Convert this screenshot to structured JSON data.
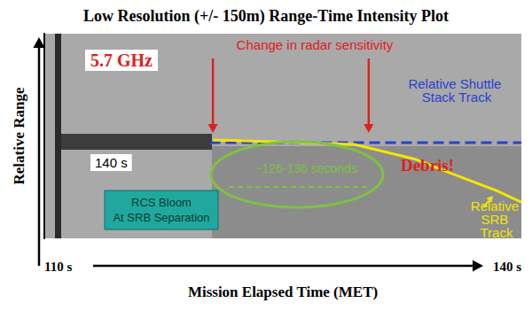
{
  "chart_data": {
    "type": "line",
    "title": "Low Resolution (+/- 150m) Range-Time Intensity Plot",
    "x_label": "Mission Elapsed Time (MET)",
    "y_label": "Relative Range",
    "xlim": [
      110,
      140
    ],
    "xticks": [
      {
        "value": 110,
        "label": "110 s"
      },
      {
        "value": 140,
        "label": "140 s"
      }
    ],
    "ylim": [
      0,
      100
    ],
    "tick_labels": "x",
    "grid": false,
    "series": [
      {
        "name": "Relative Shuttle Stack Track",
        "color": "#2b3fd0",
        "line_style": "dashed",
        "x": [
          120.4,
          140
        ],
        "values": [
          46.8,
          46.8
        ]
      },
      {
        "name": "Relative SRB Track",
        "color": "#f2e600",
        "line_style": "solid",
        "x": [
          120.6,
          129.5,
          133.4,
          136.2,
          138.4,
          140
        ],
        "values": [
          48.1,
          45.9,
          38.5,
          29.9,
          23.4,
          17.7
        ]
      }
    ],
    "annotations": {
      "frequency": "5.7 GHz",
      "sensitivity_change": {
        "text": "Change in radar sensitivity",
        "x": [
          120.6,
          130.4
        ]
      },
      "time_marker": "140 s",
      "window": "~126-136 seconds",
      "bloom": [
        "RCS Bloom",
        "At SRB Separation"
      ],
      "debris": "Debris!"
    }
  }
}
